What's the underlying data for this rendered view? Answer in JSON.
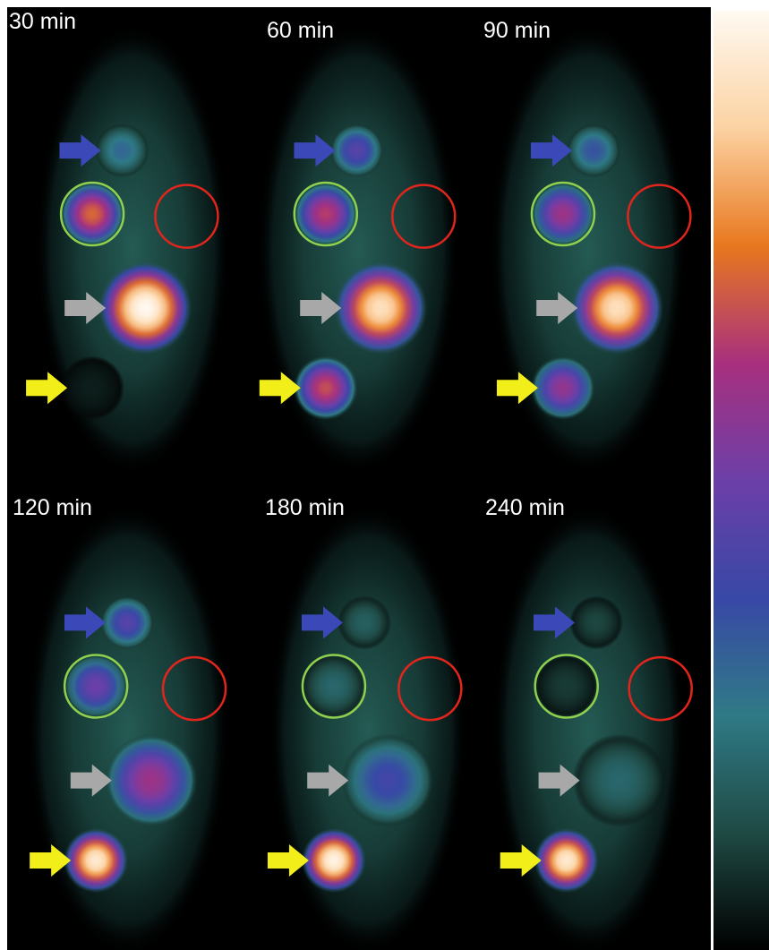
{
  "panels": [
    {
      "time_label": "30 min",
      "uptake": {
        "blue": 0.3,
        "green": 0.72,
        "red": 0.05,
        "gray": 1.0,
        "yellow": 0.05
      }
    },
    {
      "time_label": "60 min",
      "uptake": {
        "blue": 0.45,
        "green": 0.65,
        "red": 0.05,
        "gray": 0.92,
        "yellow": 0.68
      }
    },
    {
      "time_label": "90 min",
      "uptake": {
        "blue": 0.35,
        "green": 0.6,
        "red": 0.05,
        "gray": 0.92,
        "yellow": 0.58
      }
    },
    {
      "time_label": "120 min",
      "uptake": {
        "blue": 0.45,
        "green": 0.5,
        "red": 0.05,
        "gray": 0.6,
        "yellow": 0.95
      }
    },
    {
      "time_label": "180 min",
      "uptake": {
        "blue": 0.18,
        "green": 0.2,
        "red": 0.05,
        "gray": 0.4,
        "yellow": 0.98
      }
    },
    {
      "time_label": "240 min",
      "uptake": {
        "blue": 0.12,
        "green": 0.1,
        "red": 0.05,
        "gray": 0.2,
        "yellow": 0.95
      }
    }
  ],
  "arrow_colors": {
    "blue": "#3b49b8",
    "gray": "#a8a8a8",
    "yellow": "#f2ee1a"
  },
  "circle_colors": {
    "green": "#8fd14f",
    "red": "#e0261c"
  },
  "colorbar": {
    "orientation": "vertical",
    "high_at": "top",
    "stops": [
      "#fffaf2",
      "#fcd2a2",
      "#e8781e",
      "#a8307e",
      "#6c3fa8",
      "#3848a6",
      "#2f7a86",
      "#1f4a44",
      "#000000"
    ]
  }
}
